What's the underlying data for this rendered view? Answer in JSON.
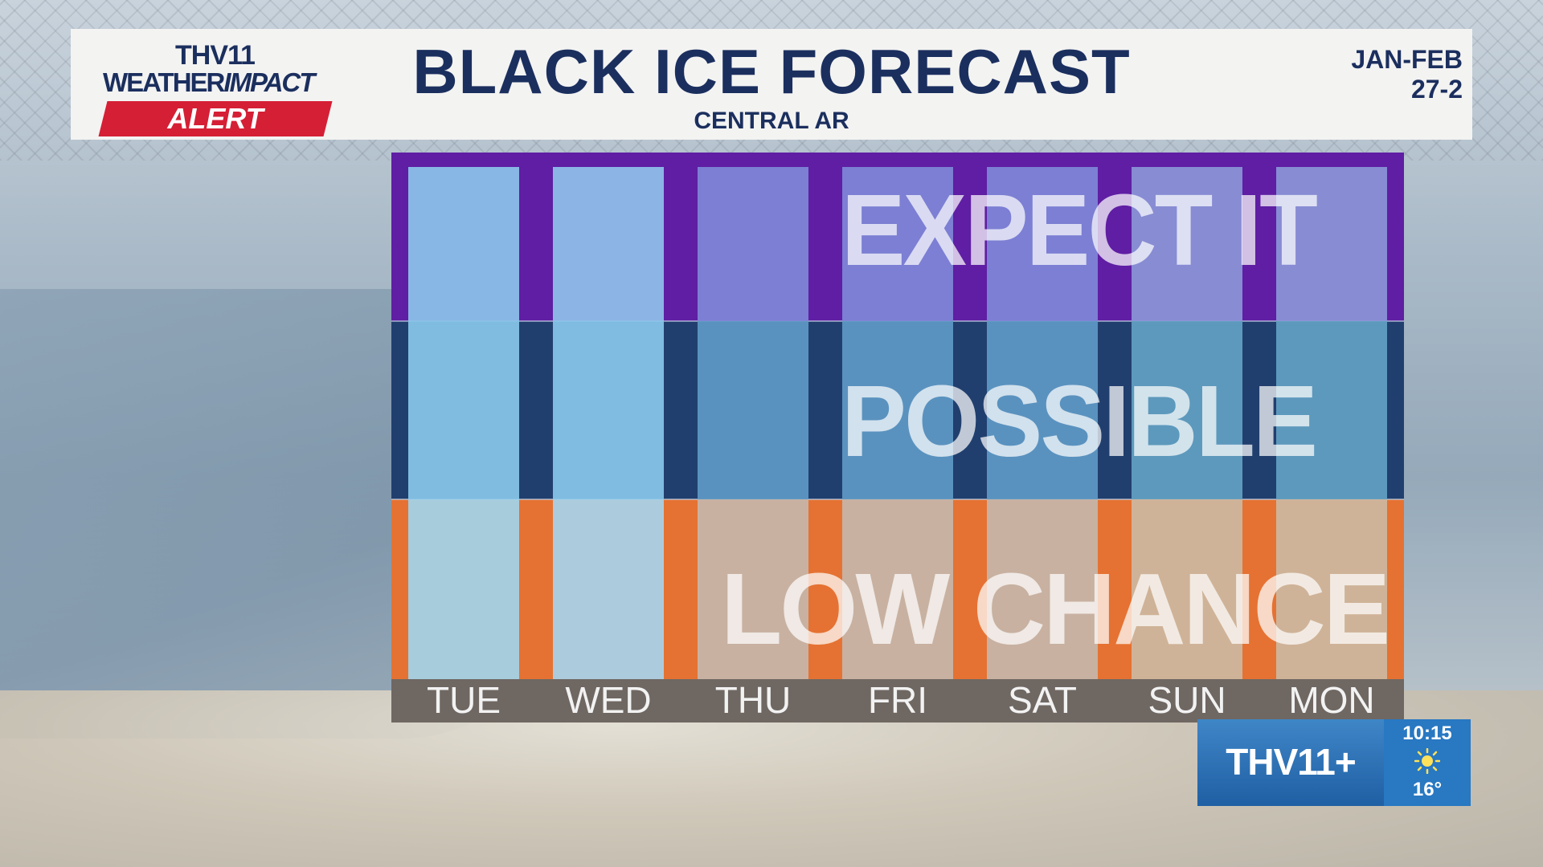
{
  "header": {
    "logo_station": "THV11",
    "logo_line1_a": "WEATHER",
    "logo_line1_b": "IMPACT",
    "logo_line2": "ALERT",
    "title": "BLACK ICE FORECAST",
    "subtitle": "CENTRAL AR",
    "date_line1": "JAN-FEB",
    "date_line2": "27-2"
  },
  "chart_data": {
    "type": "bar",
    "title": "BLACK ICE FORECAST",
    "subtitle": "CENTRAL AR",
    "categories": [
      "TUE",
      "WED",
      "THU",
      "FRI",
      "SAT",
      "SUN",
      "MON"
    ],
    "levels": [
      "LOW CHANCE",
      "POSSIBLE",
      "EXPECT IT"
    ],
    "level_colors": [
      "#e57232",
      "#213f6e",
      "#5f1ea3"
    ],
    "values": [
      3,
      3,
      3,
      3,
      3,
      3,
      3
    ],
    "bar_colors": [
      [
        "#a3d3ea",
        "#88c6e8",
        "#8cc3ea"
      ],
      [
        "#a8d2ea",
        "#88c6e9",
        "#8fc1ea"
      ],
      [
        "#c6b6aa",
        "#5f99c5",
        "#7e87d6"
      ],
      [
        "#c6b6aa",
        "#5f99c5",
        "#7e87d6"
      ],
      [
        "#c6b6aa",
        "#5f99c5",
        "#7e87d6"
      ],
      [
        "#cdb8a0",
        "#62a0c2",
        "#8a95d6"
      ],
      [
        "#cdb8a0",
        "#62a0c2",
        "#8a95d6"
      ]
    ],
    "ylim": [
      0,
      3
    ],
    "grid": false
  },
  "bug": {
    "logo": "THV11+",
    "time": "10:15",
    "temp": "16°",
    "weather_icon": "sun-icon"
  }
}
